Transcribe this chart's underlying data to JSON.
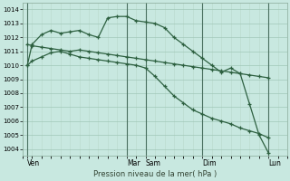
{
  "title": "",
  "xlabel": "Pression niveau de la mer( hPa )",
  "bg_color": "#c8e8e0",
  "grid_major_color": "#a0c8b8",
  "grid_minor_color": "#b8d8cc",
  "line_color": "#2d6040",
  "ylim": [
    1003.5,
    1014.5
  ],
  "yticks": [
    1004,
    1005,
    1006,
    1007,
    1008,
    1009,
    1010,
    1011,
    1012,
    1013,
    1014
  ],
  "xlim": [
    0,
    28
  ],
  "day_labels": [
    "Ven",
    "Mar",
    "Sam",
    "Dim",
    "Lun"
  ],
  "day_positions": [
    0.5,
    11,
    13,
    19,
    26
  ],
  "vline_positions": [
    0.5,
    11,
    13,
    19,
    26
  ],
  "series1_x": [
    0.5,
    1,
    2,
    3,
    4,
    5,
    6,
    7,
    8,
    9,
    10,
    11,
    12,
    13,
    14,
    15,
    16,
    17,
    18,
    19,
    20,
    21,
    22,
    23,
    24,
    25,
    26
  ],
  "series1_y": [
    1010.0,
    1011.5,
    1012.2,
    1012.5,
    1012.3,
    1012.4,
    1012.5,
    1012.2,
    1012.0,
    1013.4,
    1013.5,
    1013.5,
    1013.2,
    1013.1,
    1013.0,
    1012.7,
    1012.0,
    1011.5,
    1011.0,
    1010.5,
    1010.0,
    1009.5,
    1009.8,
    1009.4,
    1007.2,
    1005.0,
    1003.7
  ],
  "series2_x": [
    0.5,
    1,
    2,
    3,
    4,
    5,
    6,
    7,
    8,
    9,
    10,
    11,
    12,
    13,
    14,
    15,
    16,
    17,
    18,
    19,
    20,
    21,
    22,
    23,
    24,
    25,
    26
  ],
  "series2_y": [
    1011.5,
    1011.4,
    1011.3,
    1011.2,
    1011.1,
    1011.0,
    1011.1,
    1011.0,
    1010.9,
    1010.8,
    1010.7,
    1010.6,
    1010.5,
    1010.4,
    1010.3,
    1010.2,
    1010.1,
    1010.0,
    1009.9,
    1009.8,
    1009.7,
    1009.6,
    1009.5,
    1009.4,
    1009.3,
    1009.2,
    1009.1
  ],
  "series3_x": [
    0.5,
    1,
    2,
    3,
    4,
    5,
    6,
    7,
    8,
    9,
    10,
    11,
    12,
    13,
    14,
    15,
    16,
    17,
    18,
    19,
    20,
    21,
    22,
    23,
    24,
    25,
    26
  ],
  "series3_y": [
    1010.0,
    1010.3,
    1010.6,
    1010.9,
    1011.0,
    1010.8,
    1010.6,
    1010.5,
    1010.4,
    1010.3,
    1010.2,
    1010.1,
    1010.0,
    1009.8,
    1009.2,
    1008.5,
    1007.8,
    1007.3,
    1006.8,
    1006.5,
    1006.2,
    1006.0,
    1005.8,
    1005.5,
    1005.3,
    1005.1,
    1004.8
  ]
}
